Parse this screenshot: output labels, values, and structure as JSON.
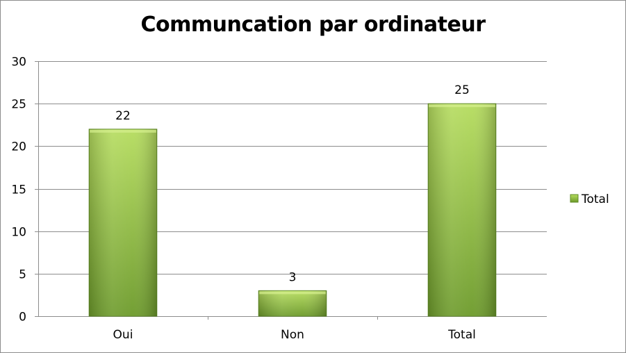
{
  "chart_data": {
    "type": "bar",
    "title": "Communcation par ordinateur",
    "xlabel": "",
    "ylabel": "",
    "categories": [
      "Oui",
      "Non",
      "Total"
    ],
    "series": [
      {
        "name": "Total",
        "values": [
          22,
          3,
          25
        ]
      }
    ],
    "ylim": [
      0,
      30
    ],
    "yticks": [
      "0",
      "5",
      "10",
      "15",
      "20",
      "25",
      "30"
    ],
    "data_labels": [
      "22",
      "3",
      "25"
    ],
    "grid": true,
    "legend_position": "right",
    "colors": {
      "bar_light": "#b5dc5e",
      "bar_dark": "#6c9a2a",
      "bar_edge": "#5e8a23",
      "grid": "#8c8c8c",
      "axis": "#8c8c8c",
      "text": "#000000"
    }
  }
}
